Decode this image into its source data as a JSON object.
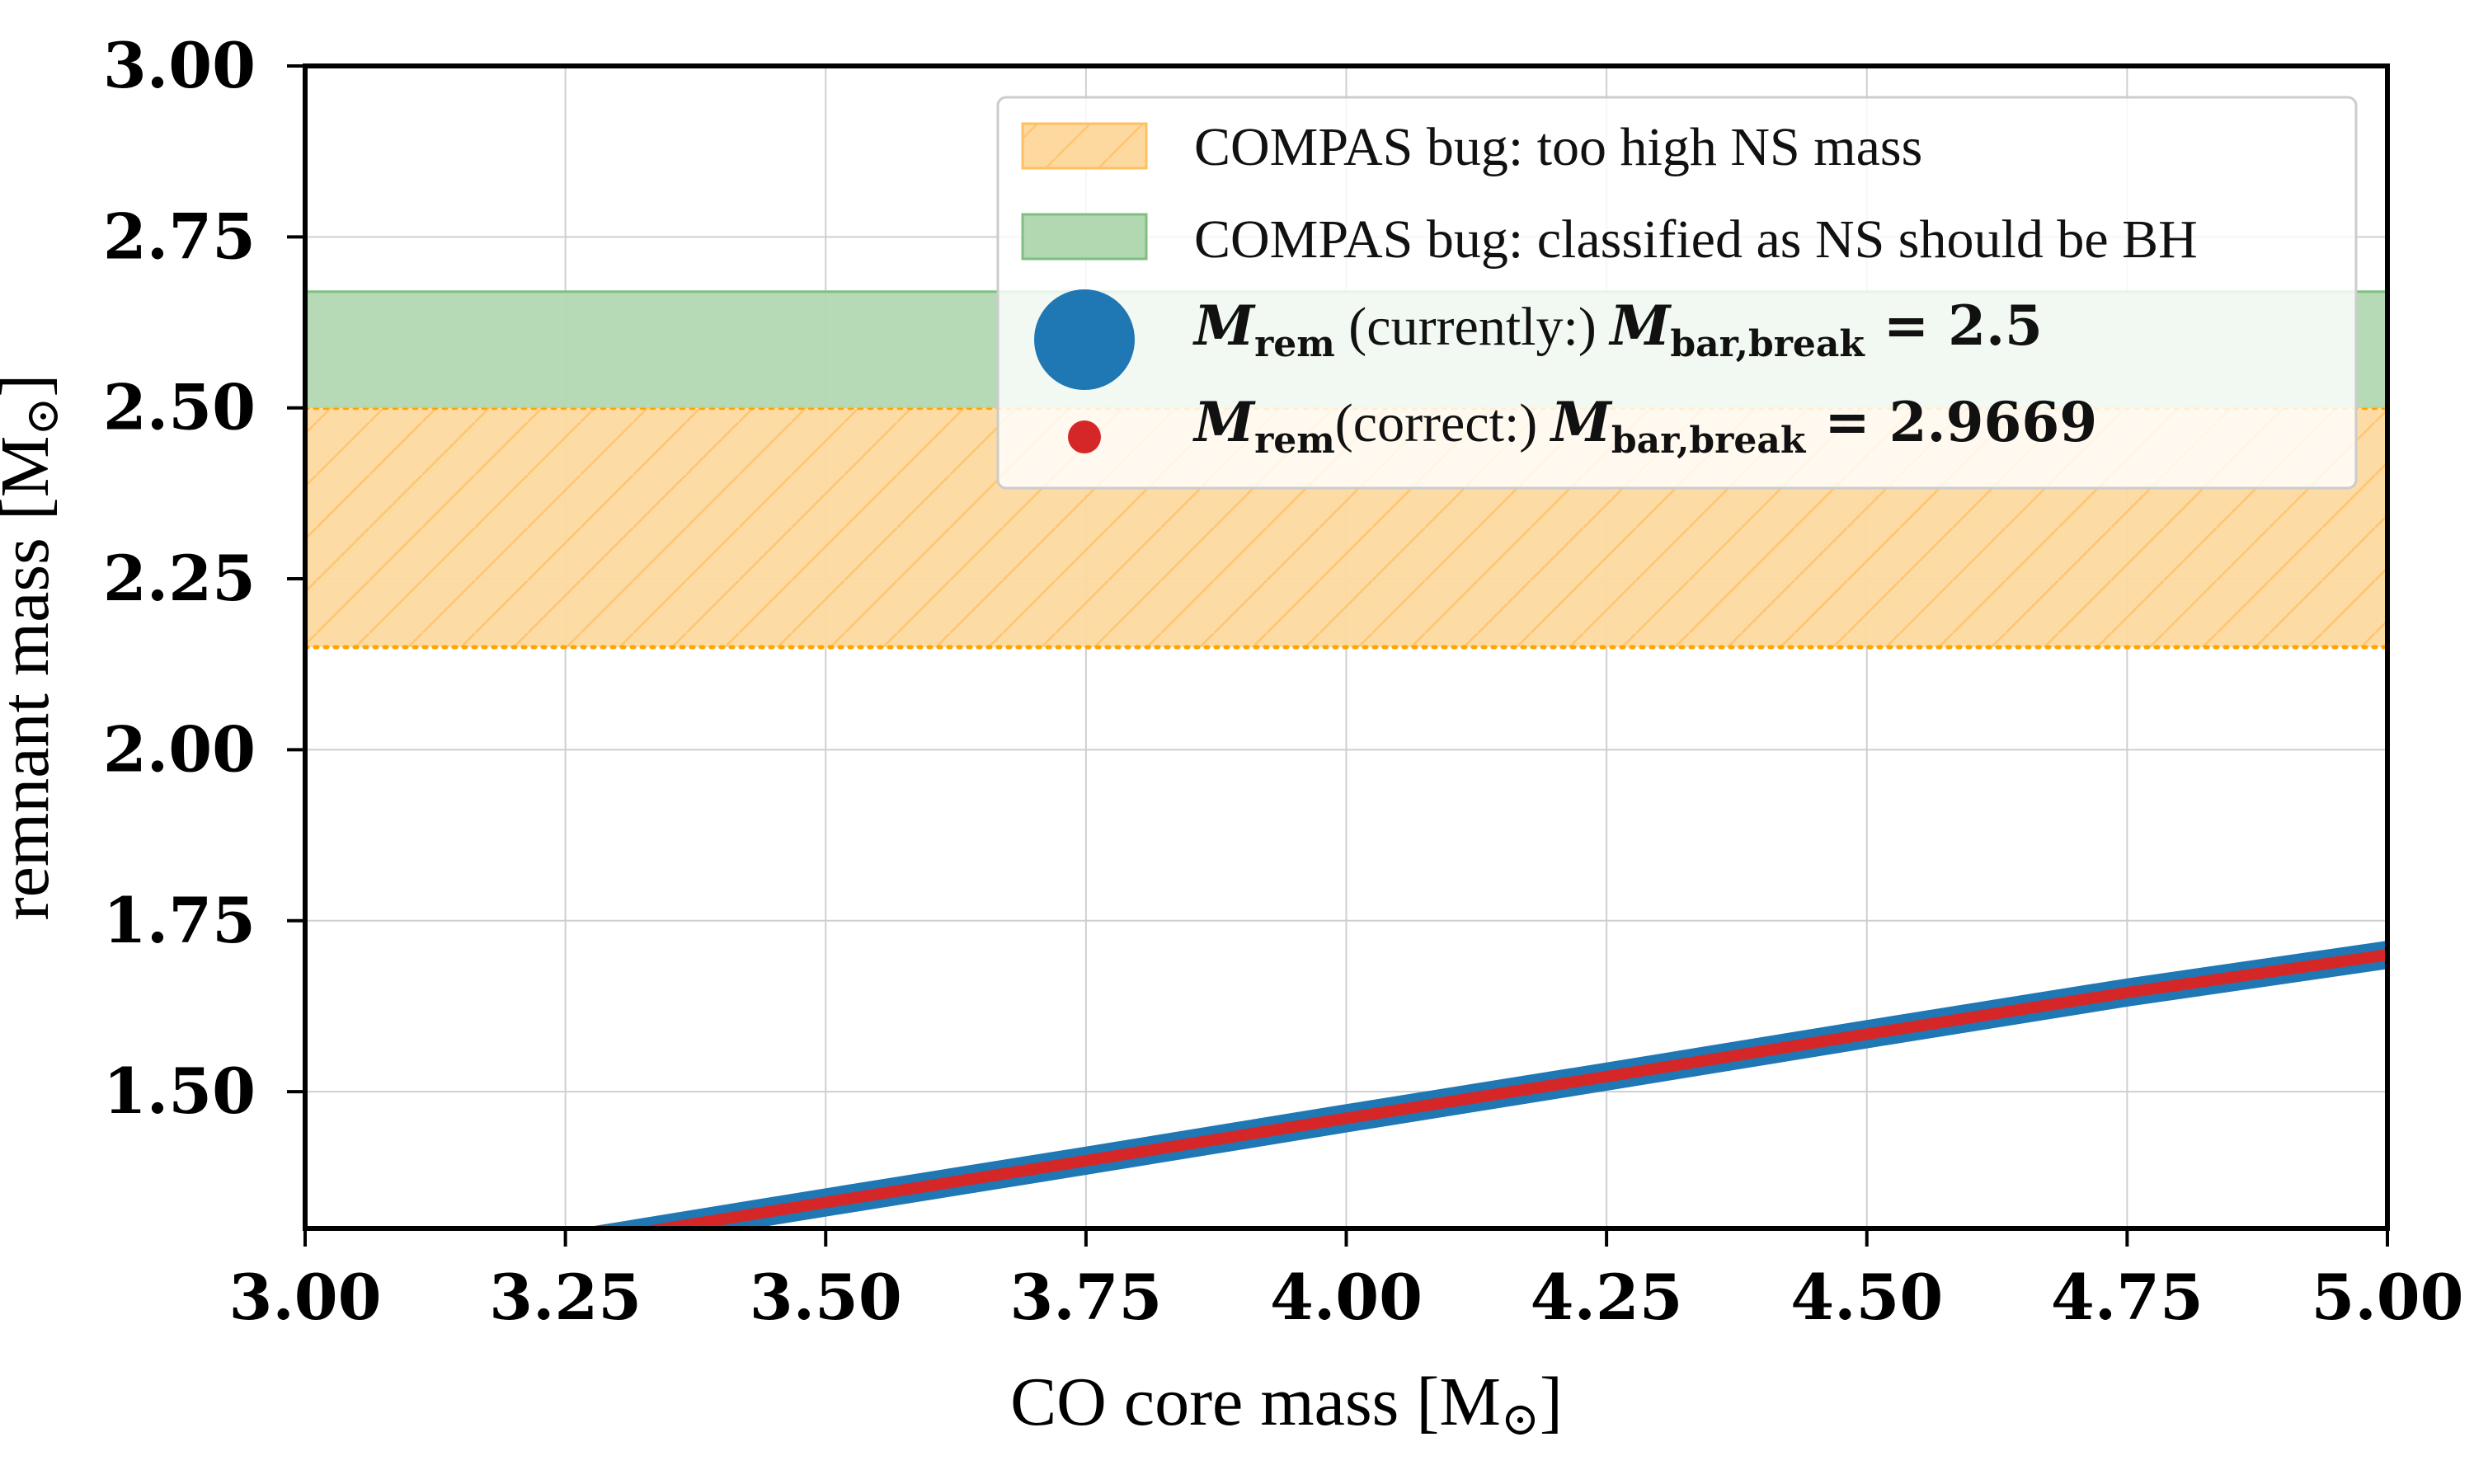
{
  "chart_data": {
    "type": "line",
    "xlabel": "CO core mass [M",
    "xlabel_sub": "⊙",
    "xlabel_close": "]",
    "ylabel": "remnant mass [M",
    "ylabel_sub": "⊙",
    "ylabel_close": "]",
    "xlim": [
      3.0,
      5.0
    ],
    "ylim": [
      1.3,
      3.0
    ],
    "xticks": [
      3.0,
      3.25,
      3.5,
      3.75,
      4.0,
      4.25,
      4.5,
      4.75,
      5.0
    ],
    "xtick_labels": [
      "3.00",
      "3.25",
      "3.50",
      "3.75",
      "4.00",
      "4.25",
      "4.50",
      "4.75",
      "5.00"
    ],
    "yticks": [
      1.5,
      1.75,
      2.0,
      2.25,
      2.5,
      2.75,
      3.0
    ],
    "ytick_labels": [
      "1.50",
      "1.75",
      "2.00",
      "2.25",
      "2.50",
      "2.75",
      "3.00"
    ],
    "grid": true,
    "legend_position": "top-right",
    "bands": [
      {
        "name": "COMPAS bug: too high NS mass",
        "ymin": 2.15,
        "ymax": 2.5,
        "color": "#fdd9a0",
        "edge": "#ffa500",
        "hatch": true
      },
      {
        "name": "COMPAS bug: classified as NS should be BH",
        "ymin": 2.5,
        "ymax": 2.67,
        "color": "#b2d8b2",
        "edge": "#7fbf7f",
        "hatch": false
      }
    ],
    "series": [
      {
        "name": "M_rem (currently:) M_bar,break = 2.5",
        "color": "#1f77b4",
        "x": [
          3.0,
          3.25,
          3.5,
          3.75,
          4.0,
          4.25,
          4.5,
          4.75,
          5.0
        ],
        "y": [
          1.215,
          1.276,
          1.338,
          1.399,
          1.461,
          1.522,
          1.584,
          1.645,
          1.7
        ]
      },
      {
        "name": "M_rem(correct:) M_bar,break = 2.9669",
        "color": "#d62728",
        "x": [
          3.0,
          3.25,
          3.5,
          3.75,
          4.0,
          4.25,
          4.5,
          4.75,
          5.0
        ],
        "y": [
          1.215,
          1.276,
          1.338,
          1.399,
          1.461,
          1.522,
          1.584,
          1.645,
          1.7
        ]
      }
    ]
  },
  "legend": {
    "item1": "COMPAS bug: too high NS mass",
    "item2": "COMPAS bug: classified as NS should be BH",
    "item3": {
      "m": "M",
      "sub": "rem",
      "mid": " (currently:) ",
      "m2": "M",
      "sub2": "bar,break",
      "eq": " = 2.5"
    },
    "item4": {
      "m": "M",
      "sub": "rem",
      "mid": "(correct:) ",
      "m2": "M",
      "sub2": "bar,break",
      "eq": " = 2.9669"
    }
  }
}
